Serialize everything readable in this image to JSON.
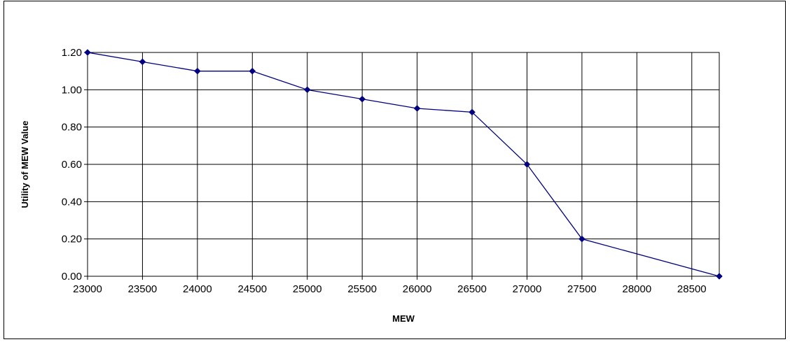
{
  "chart_data": {
    "type": "line",
    "title": "",
    "xlabel": "MEW",
    "ylabel": "Utility of MEW Value",
    "x": [
      23000,
      23500,
      24000,
      24500,
      25000,
      25500,
      26000,
      26500,
      27000,
      27500,
      28750
    ],
    "series": [
      {
        "values": [
          1.2,
          1.15,
          1.1,
          1.1,
          1.0,
          0.95,
          0.9,
          0.88,
          0.6,
          0.2,
          0.0
        ],
        "color": "#000080",
        "marker": "diamond"
      }
    ],
    "xlim": [
      23000,
      28750
    ],
    "ylim": [
      0.0,
      1.2
    ],
    "x_tick_labels": [
      "23000",
      "23500",
      "24000",
      "24500",
      "25000",
      "25500",
      "26000",
      "26500",
      "27000",
      "27500",
      "28000",
      "28500"
    ],
    "x_tick_values": [
      23000,
      23500,
      24000,
      24500,
      25000,
      25500,
      26000,
      26500,
      27000,
      27500,
      28000,
      28500
    ],
    "y_tick_labels": [
      "0.00",
      "0.20",
      "0.40",
      "0.60",
      "0.80",
      "1.00",
      "1.20"
    ],
    "y_tick_values": [
      0.0,
      0.2,
      0.4,
      0.6,
      0.8,
      1.0,
      1.2
    ],
    "grid": true,
    "legend": "none"
  }
}
